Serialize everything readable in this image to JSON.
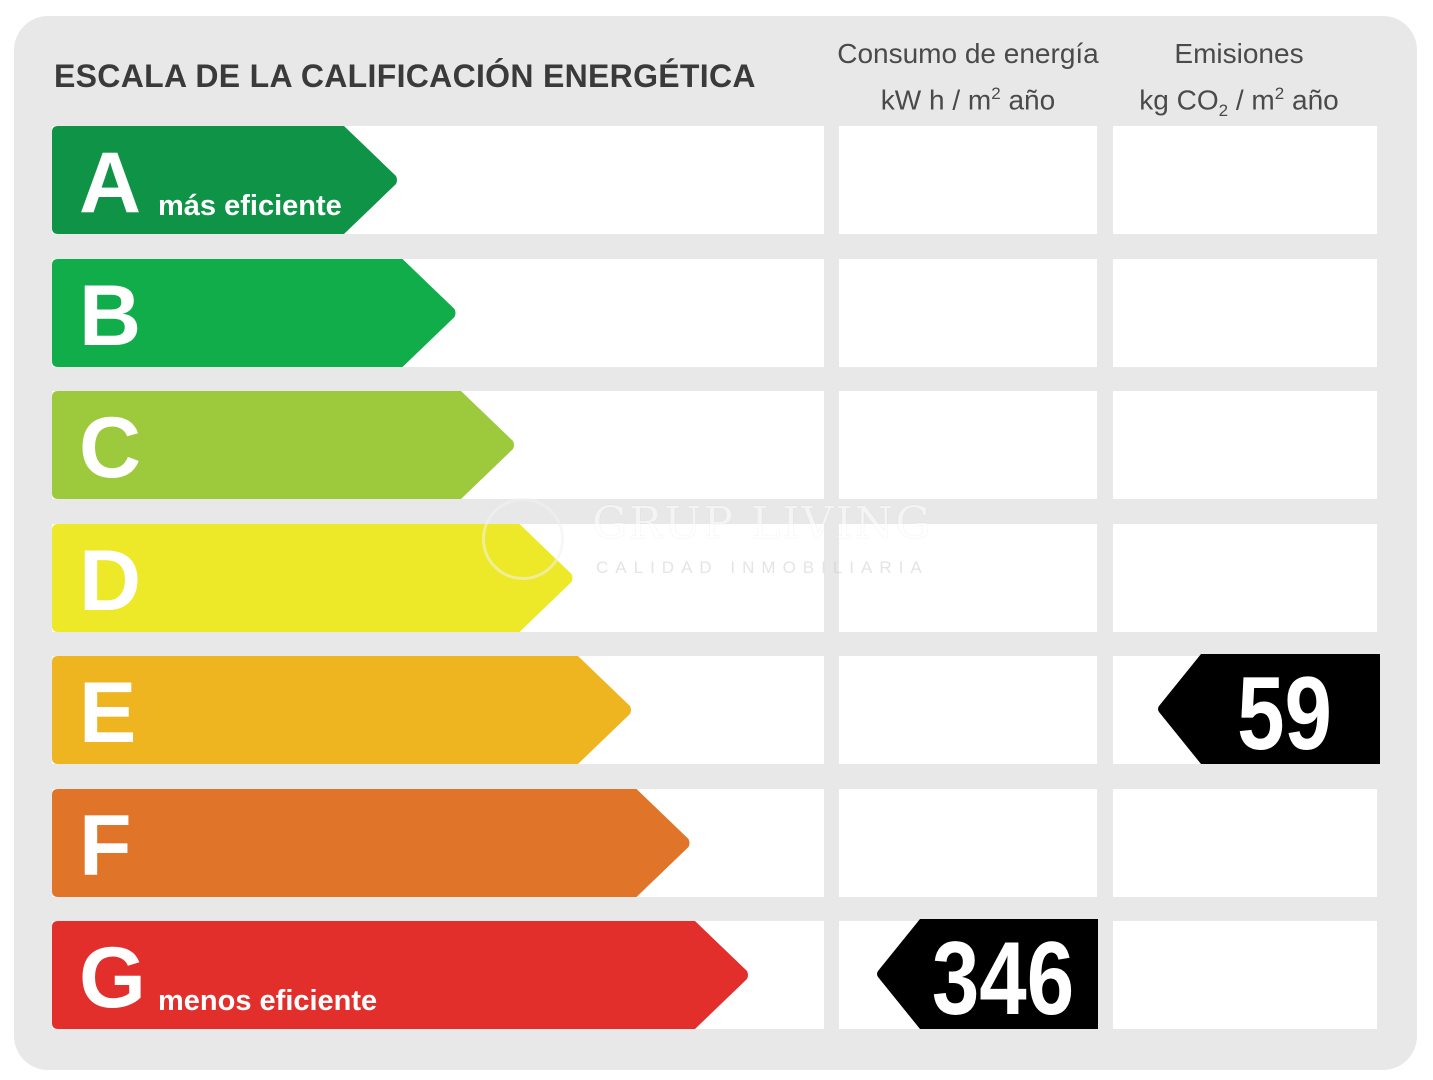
{
  "chart_data": {
    "type": "table",
    "title": "ESCALA DE LA CALIFICACIÓN ENERGÉTICA",
    "columns": [
      {
        "line1": "Consumo de energía",
        "line2_pre": "kW h  / m",
        "line2_sup": "2",
        "line2_post": " año"
      },
      {
        "line1": "Emisiones",
        "line2_pre": "kg CO",
        "line2_sub": "2",
        "line2_mid": "  / m",
        "line2_sup": "2",
        "line2_post": " año"
      }
    ],
    "grades": [
      {
        "letter": "A",
        "label": "más eficiente",
        "color": "#0f9447"
      },
      {
        "letter": "B",
        "label": "",
        "color": "#12ad4b"
      },
      {
        "letter": "C",
        "label": "",
        "color": "#9dca3c"
      },
      {
        "letter": "D",
        "label": "",
        "color": "#ede928"
      },
      {
        "letter": "E",
        "label": "",
        "color": "#eeb521"
      },
      {
        "letter": "F",
        "label": "",
        "color": "#e07429"
      },
      {
        "letter": "G",
        "label": "menos eficiente",
        "color": "#e22f2c"
      }
    ],
    "consumption": {
      "grade": "G",
      "value": 346
    },
    "emissions": {
      "grade": "E",
      "value": 59
    }
  },
  "watermark": {
    "name": "GRUP LIVING",
    "tagline": "CALIDAD INMOBILIARIA"
  }
}
